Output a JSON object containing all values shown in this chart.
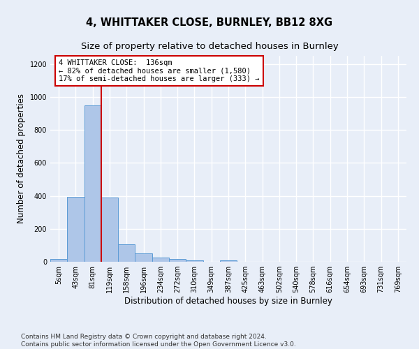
{
  "title": "4, WHITTAKER CLOSE, BURNLEY, BB12 8XG",
  "subtitle": "Size of property relative to detached houses in Burnley",
  "xlabel": "Distribution of detached houses by size in Burnley",
  "ylabel": "Number of detached properties",
  "categories": [
    "5sqm",
    "43sqm",
    "81sqm",
    "119sqm",
    "158sqm",
    "196sqm",
    "234sqm",
    "272sqm",
    "310sqm",
    "349sqm",
    "387sqm",
    "425sqm",
    "463sqm",
    "502sqm",
    "540sqm",
    "578sqm",
    "616sqm",
    "654sqm",
    "693sqm",
    "731sqm",
    "769sqm"
  ],
  "values": [
    15,
    395,
    950,
    390,
    105,
    50,
    25,
    15,
    10,
    0,
    10,
    0,
    0,
    0,
    0,
    0,
    0,
    0,
    0,
    0,
    0
  ],
  "bar_color": "#aec6e8",
  "bar_edge_color": "#5b9bd5",
  "red_line_x": 3.0,
  "annotation_text": "4 WHITTAKER CLOSE:  136sqm\n← 82% of detached houses are smaller (1,580)\n17% of semi-detached houses are larger (333) →",
  "annotation_box_color": "#ffffff",
  "annotation_box_edge_color": "#cc0000",
  "ylim": [
    0,
    1250
  ],
  "yticks": [
    0,
    200,
    400,
    600,
    800,
    1000,
    1200
  ],
  "footer": "Contains HM Land Registry data © Crown copyright and database right 2024.\nContains public sector information licensed under the Open Government Licence v3.0.",
  "bg_color": "#e8eef8",
  "plot_bg_color": "#e8eef8",
  "grid_color": "#ffffff",
  "title_fontsize": 10.5,
  "subtitle_fontsize": 9.5,
  "tick_fontsize": 7,
  "ylabel_fontsize": 8.5,
  "xlabel_fontsize": 8.5,
  "footer_fontsize": 6.5,
  "ann_fontsize": 7.5
}
